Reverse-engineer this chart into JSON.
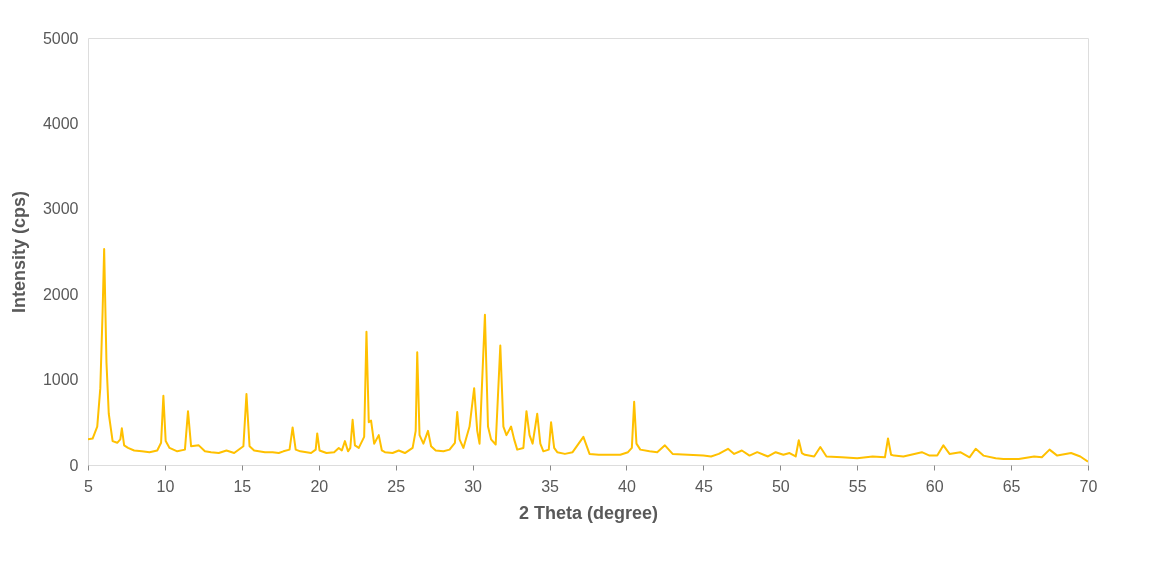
{
  "chart_data": {
    "type": "line",
    "xlabel": "2 Theta (degree)",
    "ylabel": "Intensity (cps)",
    "xlim": [
      5,
      70
    ],
    "ylim": [
      0,
      5000
    ],
    "xticks": [
      5,
      10,
      15,
      20,
      25,
      30,
      35,
      40,
      45,
      50,
      55,
      60,
      65,
      70
    ],
    "yticks": [
      0,
      1000,
      2000,
      3000,
      4000,
      5000
    ],
    "grid": false,
    "marker": "none",
    "line_style": "solid",
    "series": [
      {
        "color": "#ffc000",
        "x": [
          5,
          5.3,
          5.6,
          5.8,
          5.95,
          6.05,
          6.2,
          6.35,
          6.6,
          6.9,
          7.1,
          7.2,
          7.35,
          7.6,
          8,
          8.5,
          9,
          9.5,
          9.75,
          9.9,
          10.05,
          10.3,
          10.8,
          11.3,
          11.5,
          11.7,
          12.2,
          12.6,
          13,
          13.5,
          14,
          14.5,
          15.1,
          15.3,
          15.5,
          15.8,
          16.5,
          17,
          17.4,
          17.7,
          18.1,
          18.3,
          18.5,
          18.8,
          19.5,
          19.8,
          19.9,
          20.05,
          20.5,
          21,
          21.3,
          21.5,
          21.7,
          21.9,
          22.05,
          22.2,
          22.35,
          22.6,
          22.95,
          23.1,
          23.25,
          23.4,
          23.6,
          23.9,
          24.1,
          24.3,
          24.8,
          25.2,
          25.6,
          26.1,
          26.3,
          26.4,
          26.55,
          26.8,
          27.1,
          27.3,
          27.6,
          28.1,
          28.5,
          28.85,
          29,
          29.15,
          29.4,
          29.8,
          30.1,
          30.3,
          30.45,
          30.8,
          31.0,
          31.2,
          31.5,
          31.8,
          32.0,
          32.2,
          32.5,
          32.7,
          32.9,
          33.3,
          33.5,
          33.7,
          33.9,
          34.2,
          34.4,
          34.6,
          34.95,
          35.1,
          35.3,
          35.5,
          36,
          36.5,
          37.2,
          37.6,
          38.2,
          39,
          39.6,
          40.1,
          40.35,
          40.5,
          40.65,
          40.9,
          41.5,
          42,
          42.5,
          43,
          44,
          45,
          45.5,
          46,
          46.6,
          47,
          47.5,
          48,
          48.5,
          49.2,
          49.7,
          50.2,
          50.6,
          51.0,
          51.2,
          51.4,
          51.6,
          52.2,
          52.6,
          53,
          54,
          55,
          56,
          56.8,
          57,
          57.2,
          57.4,
          58,
          58.5,
          59.2,
          59.7,
          60.2,
          60.6,
          61,
          61.7,
          62.3,
          62.7,
          63.2,
          64,
          64.5,
          65.5,
          66.5,
          67,
          67.5,
          68,
          68.9,
          69.5,
          70
        ],
        "values": [
          300,
          310,
          450,
          900,
          1800,
          2530,
          1200,
          600,
          280,
          260,
          300,
          430,
          230,
          200,
          170,
          160,
          150,
          170,
          260,
          810,
          280,
          200,
          160,
          180,
          630,
          220,
          230,
          160,
          150,
          140,
          170,
          140,
          220,
          830,
          220,
          170,
          150,
          150,
          140,
          160,
          180,
          440,
          180,
          160,
          140,
          180,
          370,
          170,
          140,
          150,
          200,
          170,
          280,
          160,
          200,
          530,
          230,
          200,
          330,
          1560,
          500,
          520,
          250,
          350,
          170,
          150,
          140,
          170,
          140,
          200,
          400,
          1320,
          350,
          250,
          400,
          220,
          170,
          160,
          180,
          260,
          620,
          300,
          200,
          450,
          900,
          400,
          250,
          1760,
          450,
          300,
          240,
          1400,
          450,
          350,
          450,
          300,
          180,
          200,
          630,
          350,
          250,
          600,
          250,
          160,
          180,
          500,
          200,
          150,
          130,
          150,
          330,
          130,
          120,
          120,
          120,
          150,
          200,
          740,
          250,
          180,
          160,
          150,
          230,
          130,
          120,
          110,
          100,
          130,
          190,
          130,
          170,
          110,
          150,
          100,
          150,
          120,
          140,
          100,
          290,
          140,
          120,
          100,
          210,
          100,
          90,
          80,
          100,
          90,
          310,
          120,
          110,
          100,
          120,
          150,
          110,
          110,
          230,
          130,
          150,
          90,
          190,
          110,
          80,
          70,
          70,
          100,
          90,
          180,
          110,
          140,
          100,
          40
        ]
      }
    ]
  }
}
